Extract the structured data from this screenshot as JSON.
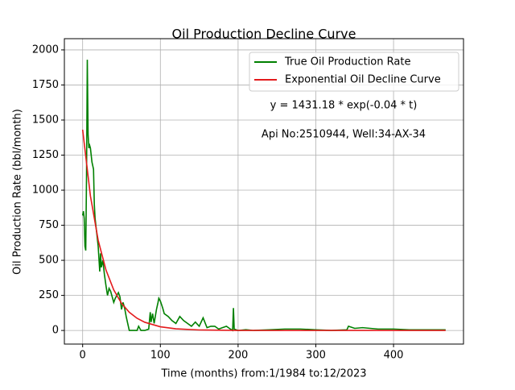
{
  "chart_data": {
    "type": "line",
    "title": "Oil Production Decline Curve",
    "x_label": "Time (months) from:1/1984 to:12/2023",
    "y_label": "Oil Production Rate (bbl/month)",
    "xlim": [
      -23.5,
      490
    ],
    "ylim": [
      -97,
      2080
    ],
    "xticks": [
      0,
      100,
      200,
      300,
      400
    ],
    "yticks": [
      0,
      250,
      500,
      750,
      1000,
      1250,
      1500,
      1750,
      2000
    ],
    "grid": true,
    "legend": "upper right",
    "annotations": [
      "y = 1431.18 * exp(-0.04 * t)",
      "Api No:2510944, Well:34-AX-34"
    ],
    "series": [
      {
        "name": "True Oil Production Rate",
        "color": "#008000",
        "x": [
          0,
          1,
          2,
          3,
          4,
          5,
          6,
          7,
          8,
          9,
          10,
          12,
          14,
          15,
          16,
          18,
          20,
          22,
          23,
          24,
          26,
          28,
          30,
          32,
          34,
          36,
          38,
          40,
          42,
          44,
          46,
          48,
          50,
          52,
          54,
          56,
          58,
          60,
          65,
          70,
          72,
          75,
          80,
          85,
          87,
          88,
          90,
          92,
          95,
          97,
          98,
          100,
          103,
          105,
          110,
          115,
          120,
          125,
          130,
          135,
          140,
          145,
          150,
          155,
          160,
          165,
          170,
          175,
          180,
          185,
          190,
          193,
          194,
          195,
          200,
          210,
          220,
          240,
          260,
          280,
          300,
          320,
          340,
          342,
          350,
          360,
          370,
          380,
          400,
          420,
          440,
          460,
          467
        ],
        "values": [
          820,
          850,
          800,
          600,
          570,
          1100,
          1930,
          1400,
          1300,
          1320,
          1300,
          1200,
          1150,
          900,
          800,
          700,
          600,
          420,
          550,
          450,
          500,
          400,
          320,
          250,
          300,
          280,
          240,
          200,
          230,
          250,
          270,
          240,
          150,
          200,
          160,
          100,
          50,
          0,
          0,
          0,
          30,
          0,
          0,
          10,
          130,
          60,
          120,
          50,
          150,
          200,
          230,
          210,
          160,
          120,
          100,
          70,
          50,
          100,
          70,
          50,
          30,
          60,
          30,
          90,
          20,
          30,
          30,
          10,
          20,
          30,
          10,
          0,
          160,
          10,
          0,
          5,
          0,
          5,
          10,
          10,
          5,
          0,
          5,
          30,
          15,
          20,
          15,
          10,
          10,
          5,
          5,
          5,
          5
        ]
      },
      {
        "name": "Exponential Oil Decline Curve",
        "color": "#e31a1c",
        "x": [
          0,
          10,
          20,
          30,
          40,
          50,
          60,
          70,
          80,
          100,
          120,
          150,
          200,
          300,
          400,
          467
        ],
        "values": [
          1431.18,
          959.4,
          643.1,
          431.1,
          289.0,
          193.7,
          129.9,
          87.1,
          58.4,
          26.2,
          11.8,
          3.5,
          0.5,
          0,
          0,
          0
        ]
      }
    ]
  }
}
